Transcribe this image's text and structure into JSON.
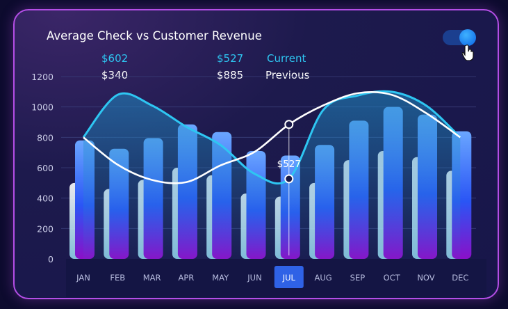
{
  "header": {
    "title": "Average Check vs Customer Revenue"
  },
  "legend": {
    "current_label": "Current",
    "previous_label": "Previous",
    "current_check": "$602",
    "previous_check": "$340",
    "current_revenue": "$527",
    "previous_revenue": "$885"
  },
  "toggle": {
    "state": "on"
  },
  "tooltip": {
    "text": "$527",
    "month": "JUL"
  },
  "colors": {
    "current": "#2ec6f2",
    "previous": "#ffffff",
    "border": "#b44ee6",
    "selected_month": "#2f62e6"
  },
  "chart_data": {
    "type": "bar",
    "title": "Average Check vs Customer Revenue",
    "categories": [
      "JAN",
      "FEB",
      "MAR",
      "APR",
      "MAY",
      "JUN",
      "JUL",
      "AUG",
      "SEP",
      "OCT",
      "NOV",
      "DEC"
    ],
    "selected_category": "JUL",
    "ylim": [
      0,
      1200
    ],
    "yticks": [
      0,
      200,
      400,
      600,
      800,
      1000,
      1200
    ],
    "series": [
      {
        "name": "Previous",
        "kind": "bar",
        "values": [
          500,
          460,
          520,
          600,
          550,
          430,
          410,
          500,
          650,
          710,
          670,
          580
        ]
      },
      {
        "name": "Current",
        "kind": "bar",
        "values": [
          780,
          725,
          795,
          885,
          835,
          710,
          680,
          750,
          910,
          1000,
          950,
          840
        ]
      },
      {
        "name": "Current",
        "kind": "line",
        "values": [
          800,
          1080,
          1010,
          870,
          750,
          560,
          527,
          980,
          1075,
          1100,
          1010,
          800
        ]
      },
      {
        "name": "Previous",
        "kind": "line",
        "values": [
          800,
          620,
          520,
          505,
          615,
          705,
          885,
          1010,
          1090,
          1080,
          960,
          800
        ]
      }
    ]
  }
}
